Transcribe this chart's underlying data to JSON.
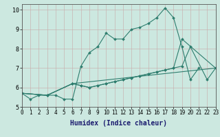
{
  "title": "",
  "xlabel": "Humidex (Indice chaleur)",
  "xlim": [
    0,
    23
  ],
  "ylim": [
    5,
    10.3
  ],
  "xticks": [
    0,
    1,
    2,
    3,
    4,
    5,
    6,
    7,
    8,
    9,
    10,
    11,
    12,
    13,
    14,
    15,
    16,
    17,
    18,
    19,
    20,
    21,
    22,
    23
  ],
  "yticks": [
    5,
    6,
    7,
    8,
    9,
    10
  ],
  "bg_color": "#cce8e0",
  "line_color": "#2e7d6e",
  "series_connected": [
    {
      "x": [
        0,
        1,
        2,
        3,
        4,
        5,
        6,
        7,
        8,
        9,
        10,
        11,
        12,
        13,
        14,
        15,
        16,
        17,
        18,
        19,
        20,
        21
      ],
      "y": [
        5.7,
        5.4,
        5.6,
        5.6,
        5.6,
        5.4,
        5.4,
        7.1,
        7.8,
        8.1,
        8.8,
        8.5,
        8.5,
        9.0,
        9.1,
        9.3,
        9.6,
        10.1,
        9.6,
        8.1,
        6.4,
        7.0
      ]
    },
    {
      "x": [
        0,
        3,
        6,
        7,
        8,
        9,
        10,
        11,
        12,
        13,
        14,
        15,
        16,
        17,
        18,
        19,
        20,
        22,
        23
      ],
      "y": [
        5.7,
        5.6,
        6.2,
        6.1,
        6.0,
        6.1,
        6.2,
        6.3,
        6.4,
        6.5,
        6.6,
        6.7,
        6.8,
        6.9,
        7.0,
        7.1,
        8.1,
        6.4,
        7.0
      ]
    },
    {
      "x": [
        0,
        3,
        6,
        7,
        8,
        9,
        10,
        11,
        12,
        13,
        14,
        15,
        16,
        17,
        18,
        19,
        23
      ],
      "y": [
        5.7,
        5.6,
        6.2,
        6.1,
        6.0,
        6.1,
        6.2,
        6.3,
        6.4,
        6.5,
        6.6,
        6.7,
        6.8,
        6.9,
        7.0,
        8.5,
        7.0
      ]
    },
    {
      "x": [
        0,
        3,
        6,
        23
      ],
      "y": [
        5.7,
        5.6,
        6.2,
        7.0
      ]
    }
  ],
  "markersize": 2.0,
  "linewidth": 0.8,
  "tick_fontsize": 5.5,
  "xlabel_fontsize": 7.0
}
